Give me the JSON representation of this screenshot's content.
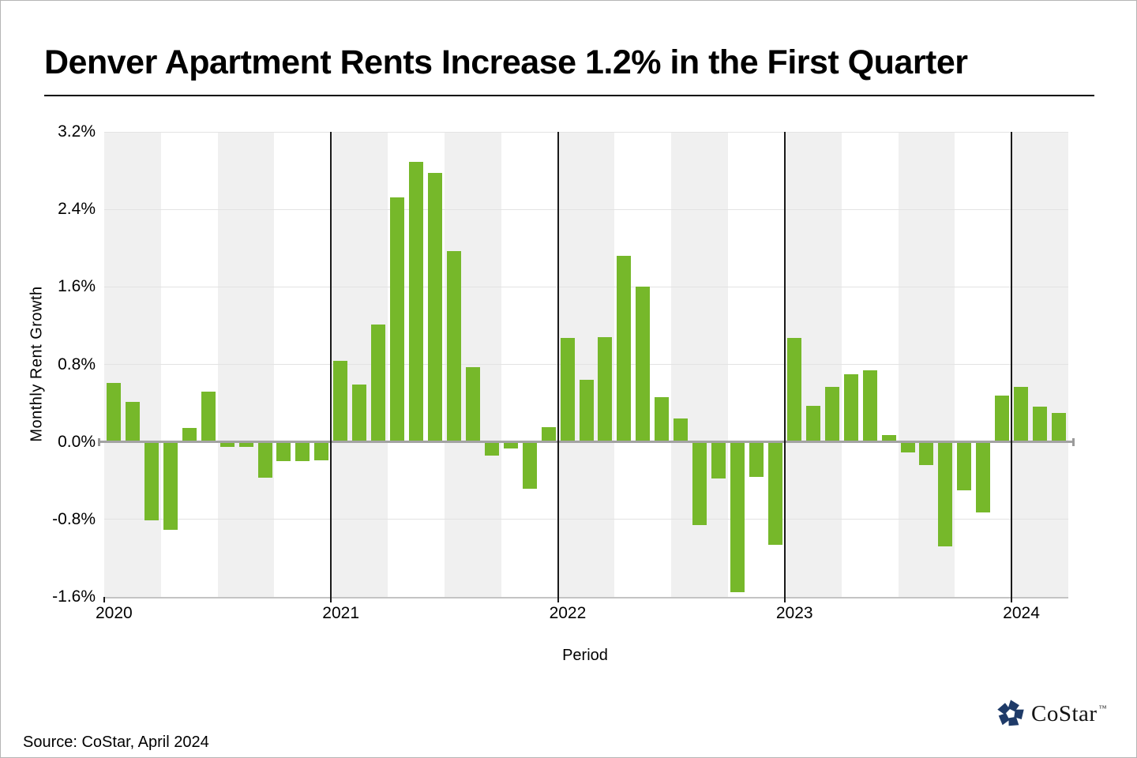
{
  "title": "Denver Apartment Rents Increase 1.2% in the First Quarter",
  "source": "Source: CoStar, April 2024",
  "logo": {
    "text": "CoStar",
    "tm": "™",
    "color": "#1e3a68"
  },
  "chart_data": {
    "type": "bar",
    "title": "Denver Apartment Rents Increase 1.2% in the First Quarter",
    "xlabel": "Period",
    "ylabel": "Monthly Rent Growth",
    "ylim": [
      -1.6,
      3.2
    ],
    "ytick_values": [
      3.2,
      2.4,
      1.6,
      0.8,
      0.0,
      -0.8,
      -1.6
    ],
    "ytick_labels": [
      "3.2%",
      "2.4%",
      "1.6%",
      "0.8%",
      "0.0%",
      "-0.8%",
      "-1.6%"
    ],
    "year_labels": [
      "2020",
      "2021",
      "2022",
      "2023",
      "2024"
    ],
    "x_unit": "month",
    "x_start": "2020-01",
    "x_end": "2024-03",
    "values_by_year": {
      "2020": [
        0.61,
        0.41,
        -0.81,
        -0.91,
        0.14,
        0.52,
        -0.05,
        -0.05,
        -0.37,
        -0.2,
        -0.2,
        -0.19
      ],
      "2021": [
        0.84,
        0.59,
        1.21,
        2.52,
        2.89,
        2.78,
        1.97,
        0.77,
        -0.14,
        -0.07,
        -0.48,
        0.15
      ],
      "2022": [
        1.07,
        0.64,
        1.08,
        1.92,
        1.6,
        0.46,
        0.24,
        -0.86,
        -0.38,
        -1.55,
        -0.36,
        -1.06
      ],
      "2023": [
        1.07,
        0.37,
        0.57,
        0.7,
        0.74,
        0.07,
        -0.11,
        -0.24,
        -1.08,
        -0.5,
        -0.73,
        0.48
      ],
      "2024": [
        0.57,
        0.36,
        0.3
      ]
    },
    "bar_color": "#76B82A",
    "band_color": "#f0f0f0",
    "band_rule": "alternating quarterly shading, Q1 and Q3 shaded",
    "grid": true,
    "legend": null
  }
}
